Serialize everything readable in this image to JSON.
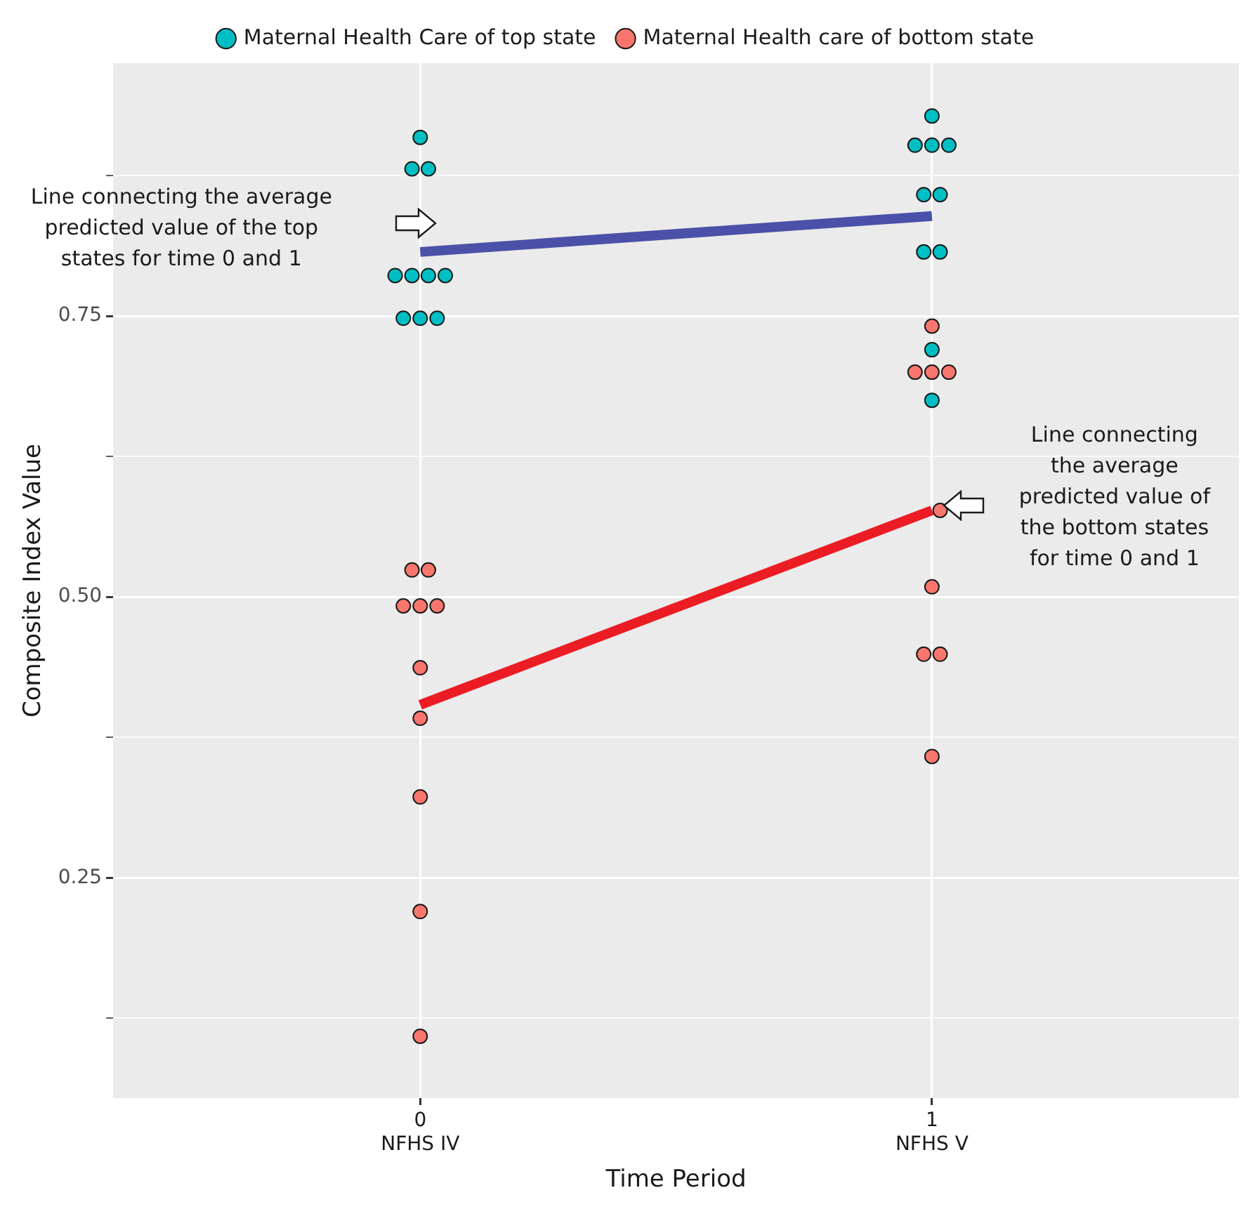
{
  "chart_data": {
    "type": "scatter",
    "xlabel": "Time Period",
    "ylabel": "Composite Index Value",
    "xlim": [
      -0.6,
      1.6
    ],
    "xticks": [
      {
        "value": 0,
        "label": "0\nNFHS IV"
      },
      {
        "value": 1,
        "label": "1\nNFHS V"
      }
    ],
    "ylim": [
      0.054,
      0.975
    ],
    "yticks": [
      {
        "value": 0.125,
        "label": null
      },
      {
        "value": 0.25,
        "label": "0.25"
      },
      {
        "value": 0.375,
        "label": null
      },
      {
        "value": 0.5,
        "label": "0.50"
      },
      {
        "value": 0.625,
        "label": null
      },
      {
        "value": 0.75,
        "label": "0.75"
      },
      {
        "value": 0.875,
        "label": null
      }
    ],
    "grid": true,
    "legend": "top",
    "marker": "circle",
    "series": [
      {
        "name": "Maternal Health Care of top state",
        "color": "#00bfc4",
        "x": [
          0,
          -0.016,
          0.016,
          -0.049,
          -0.016,
          0.016,
          0.049,
          -0.033,
          0,
          0.033,
          1,
          0.967,
          1,
          1.033,
          0.984,
          1.016,
          0.984,
          1.016,
          1,
          1
        ],
        "values": [
          0.909,
          0.881,
          0.881,
          0.786,
          0.786,
          0.786,
          0.786,
          0.748,
          0.748,
          0.748,
          0.928,
          0.902,
          0.902,
          0.902,
          0.858,
          0.858,
          0.807,
          0.807,
          0.72,
          0.675
        ]
      },
      {
        "name": "Maternal Health care of bottom state",
        "color": "#f8766d",
        "x": [
          -0.016,
          0.016,
          -0.033,
          0,
          0.033,
          0,
          0,
          0,
          0,
          0,
          1,
          0.967,
          1,
          1.033,
          1.016,
          1,
          0.984,
          1.016,
          1
        ],
        "values": [
          0.524,
          0.524,
          0.492,
          0.492,
          0.492,
          0.437,
          0.392,
          0.322,
          0.22,
          0.109,
          0.741,
          0.7,
          0.7,
          0.7,
          0.577,
          0.509,
          0.449,
          0.449,
          0.358
        ]
      },
      {
        "type": "line",
        "color": "#4b50a8",
        "line_style": "solid",
        "marker": "none",
        "x": [
          0,
          1
        ],
        "values": [
          0.807,
          0.839
        ]
      },
      {
        "type": "line",
        "color": "#ec1c24",
        "line_style": "solid",
        "marker": "none",
        "x": [
          0,
          1
        ],
        "values": [
          0.404,
          0.577
        ]
      }
    ],
    "annotations": [
      "Line connecting the average\npredicted value of the top\nstates for time 0 and 1",
      "Line connecting\nthe average\npredicted value of\nthe bottom states\nfor time 0 and 1"
    ]
  }
}
